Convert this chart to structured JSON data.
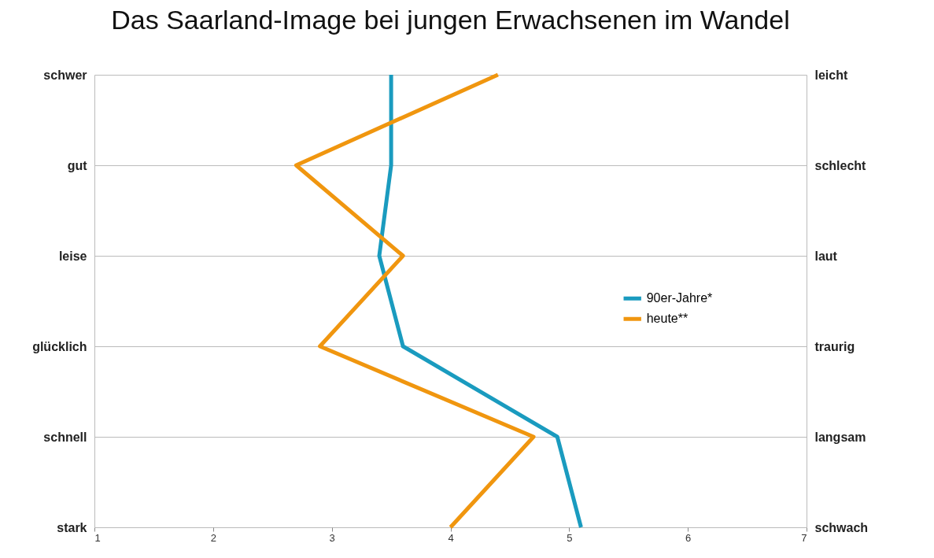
{
  "chart_data": {
    "type": "line",
    "orientation": "horizontal",
    "title": "Das Saarland-Image bei jungen Erwachsenen im Wandel",
    "categories": [
      "schwer",
      "gut",
      "leise",
      "glücklich",
      "schnell",
      "stark"
    ],
    "y2_categories": [
      "leicht",
      "schlecht",
      "laut",
      "traurig",
      "langsam",
      "schwach"
    ],
    "xlim": [
      1,
      7
    ],
    "xticks": [
      1,
      2,
      3,
      4,
      5,
      6,
      7
    ],
    "grid": "y",
    "legend": "right",
    "marker": "none",
    "line_style": "solid",
    "series": [
      {
        "name": "90er-Jahre*",
        "color": "#1a9bbf",
        "values": [
          3.5,
          3.5,
          3.4,
          3.6,
          4.9,
          5.1
        ]
      },
      {
        "name": "heute**",
        "color": "#f0960f",
        "values": [
          4.4,
          2.7,
          3.6,
          2.9,
          4.7,
          4.0
        ]
      }
    ]
  }
}
